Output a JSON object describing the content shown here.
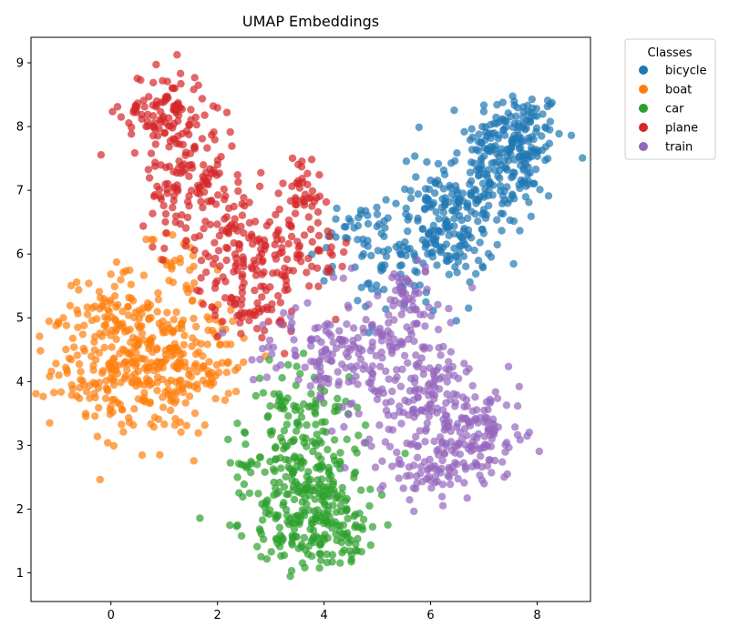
{
  "chart_data": {
    "type": "scatter",
    "title": "UMAP Embeddings",
    "xlabel": "",
    "ylabel": "",
    "xlim": [
      -1.5,
      9.0
    ],
    "ylim": [
      0.55,
      9.4
    ],
    "xticks": [
      0,
      2,
      4,
      6,
      8
    ],
    "yticks": [
      1,
      2,
      3,
      4,
      5,
      6,
      7,
      8,
      9
    ],
    "grid": false,
    "legend": {
      "title": "Classes",
      "placement": "outside-top-right"
    },
    "marker": {
      "shape": "circle",
      "alpha": 0.7
    },
    "series": [
      {
        "name": "bicycle",
        "color": "#1f77b4",
        "clusters": [
          {
            "center": [
              7.6,
              7.8
            ],
            "spread": [
              0.45,
              0.4
            ],
            "count": 160
          },
          {
            "center": [
              6.9,
              7.0
            ],
            "spread": [
              0.55,
              0.45
            ],
            "count": 150
          },
          {
            "center": [
              6.3,
              6.3
            ],
            "spread": [
              0.45,
              0.4
            ],
            "count": 110
          },
          {
            "center": [
              5.4,
              5.9
            ],
            "spread": [
              0.6,
              0.45
            ],
            "count": 70
          },
          {
            "center": [
              4.7,
              6.3
            ],
            "spread": [
              0.45,
              0.3
            ],
            "count": 30
          }
        ]
      },
      {
        "name": "boat",
        "color": "#ff7f0e",
        "clusters": [
          {
            "center": [
              0.1,
              4.2
            ],
            "spread": [
              0.6,
              0.45
            ],
            "count": 180
          },
          {
            "center": [
              1.0,
              4.2
            ],
            "spread": [
              0.6,
              0.55
            ],
            "count": 150
          },
          {
            "center": [
              0.0,
              5.2
            ],
            "spread": [
              0.4,
              0.3
            ],
            "count": 60
          },
          {
            "center": [
              1.9,
              4.5
            ],
            "spread": [
              0.45,
              0.45
            ],
            "count": 50
          },
          {
            "center": [
              1.2,
              5.8
            ],
            "spread": [
              0.35,
              0.3
            ],
            "count": 30
          }
        ]
      },
      {
        "name": "car",
        "color": "#2ca02c",
        "clusters": [
          {
            "center": [
              3.7,
              1.8
            ],
            "spread": [
              0.55,
              0.4
            ],
            "count": 170
          },
          {
            "center": [
              3.6,
              2.7
            ],
            "spread": [
              0.6,
              0.4
            ],
            "count": 130
          },
          {
            "center": [
              3.5,
              3.6
            ],
            "spread": [
              0.5,
              0.35
            ],
            "count": 70
          },
          {
            "center": [
              4.5,
              1.8
            ],
            "spread": [
              0.35,
              0.3
            ],
            "count": 40
          }
        ]
      },
      {
        "name": "plane",
        "color": "#d62728",
        "clusters": [
          {
            "center": [
              1.0,
              8.2
            ],
            "spread": [
              0.4,
              0.35
            ],
            "count": 110
          },
          {
            "center": [
              1.5,
              7.1
            ],
            "spread": [
              0.45,
              0.45
            ],
            "count": 110
          },
          {
            "center": [
              2.5,
              6.2
            ],
            "spread": [
              0.5,
              0.45
            ],
            "count": 110
          },
          {
            "center": [
              2.6,
              5.3
            ],
            "spread": [
              0.45,
              0.35
            ],
            "count": 70
          },
          {
            "center": [
              3.6,
              7.0
            ],
            "spread": [
              0.2,
              0.3
            ],
            "count": 40
          },
          {
            "center": [
              3.7,
              5.9
            ],
            "spread": [
              0.4,
              0.35
            ],
            "count": 40
          }
        ]
      },
      {
        "name": "train",
        "color": "#9467bd",
        "clusters": [
          {
            "center": [
              4.8,
              4.4
            ],
            "spread": [
              0.55,
              0.45
            ],
            "count": 130
          },
          {
            "center": [
              6.0,
              3.6
            ],
            "spread": [
              0.6,
              0.55
            ],
            "count": 170
          },
          {
            "center": [
              7.0,
              3.2
            ],
            "spread": [
              0.4,
              0.35
            ],
            "count": 80
          },
          {
            "center": [
              3.7,
              4.6
            ],
            "spread": [
              0.5,
              0.35
            ],
            "count": 50
          },
          {
            "center": [
              6.0,
              2.6
            ],
            "spread": [
              0.5,
              0.25
            ],
            "count": 60
          },
          {
            "center": [
              5.6,
              5.3
            ],
            "spread": [
              0.5,
              0.3
            ],
            "count": 50
          }
        ]
      }
    ]
  }
}
